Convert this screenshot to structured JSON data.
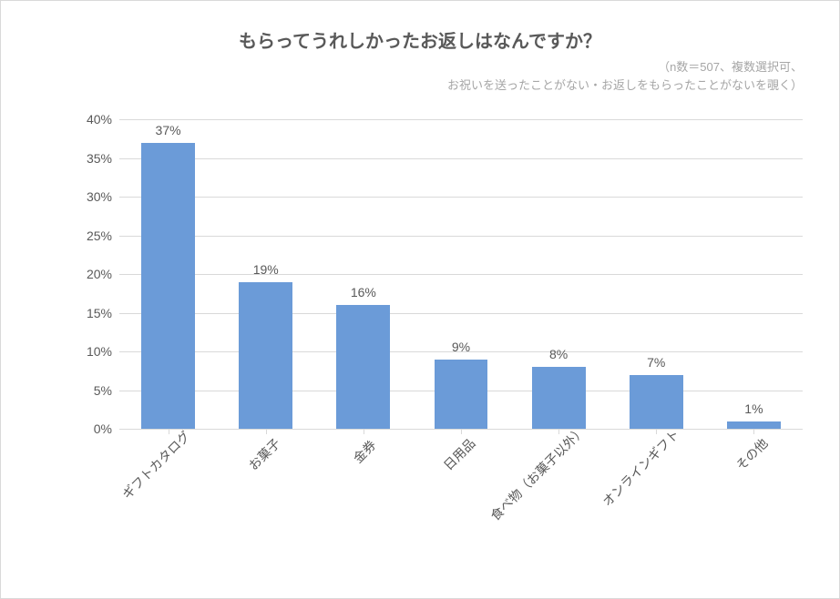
{
  "chart": {
    "type": "bar",
    "title": "もらってうれしかったお返しはなんですか？",
    "subtitle_line1": "（n数＝507、複数選択可、",
    "subtitle_line2": "お祝いを送ったことがない・お返しをもらったことがないを覗く）",
    "title_fontsize": 20,
    "title_color": "#595959",
    "subtitle_fontsize": 13,
    "subtitle_color": "#a6a6a6",
    "categories": [
      "ギフトカタログ",
      "お菓子",
      "金券",
      "日用品",
      "食べ物（お菓子以外）",
      "オンラインギフト",
      "その他"
    ],
    "values": [
      37,
      19,
      16,
      9,
      8,
      7,
      1
    ],
    "value_labels": [
      "37%",
      "19%",
      "16%",
      "9%",
      "8%",
      "7%",
      "1%"
    ],
    "bar_color": "#6b9bd8",
    "ylim": [
      0,
      40
    ],
    "ytick_step": 5,
    "yticks": [
      0,
      5,
      10,
      15,
      20,
      25,
      30,
      35,
      40
    ],
    "ytick_labels": [
      "0%",
      "5%",
      "10%",
      "15%",
      "20%",
      "25%",
      "30%",
      "35%",
      "40%"
    ],
    "background_color": "#ffffff",
    "grid_color": "#d9d9d9",
    "border_color": "#d9d9d9",
    "axis_label_color": "#595959",
    "axis_label_fontsize": 14,
    "bar_width_ratio": 0.55,
    "xlabel_rotation": -45
  }
}
